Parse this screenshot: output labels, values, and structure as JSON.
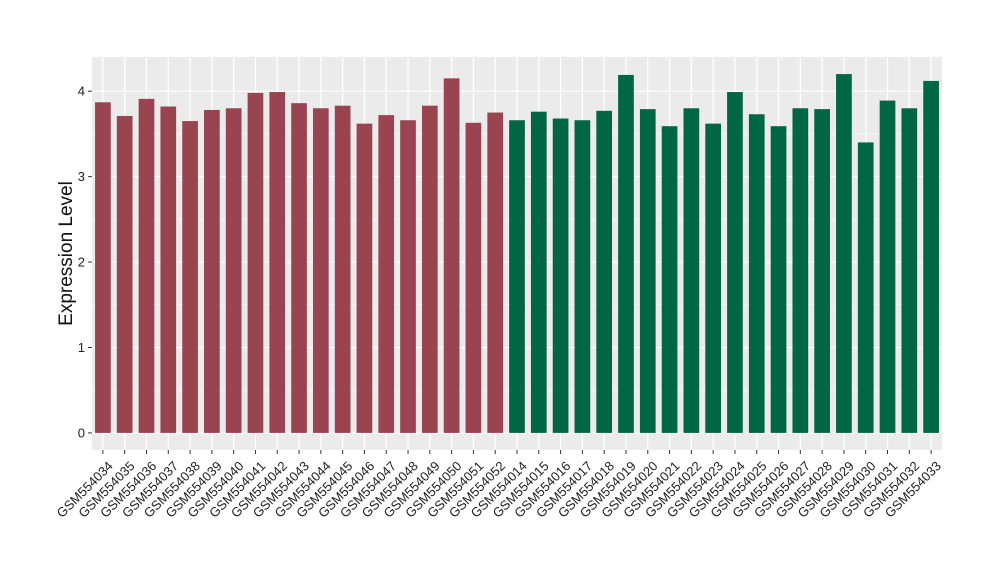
{
  "chart_data": {
    "type": "bar",
    "ylabel": "Expression Level",
    "xlabel": "",
    "title": "",
    "ylim": [
      -0.2,
      4.4
    ],
    "yticks": [
      0,
      1,
      2,
      3,
      4
    ],
    "grid": true,
    "legend": "none",
    "colors": {
      "group_a": "#9a4452",
      "group_b": "#006644",
      "panel_bg": "#ebebeb",
      "grid": "#ffffff"
    },
    "categories": [
      "GSM554034",
      "GSM554035",
      "GSM554036",
      "GSM554037",
      "GSM554038",
      "GSM554039",
      "GSM554040",
      "GSM554041",
      "GSM554042",
      "GSM554043",
      "GSM554044",
      "GSM554045",
      "GSM554046",
      "GSM554047",
      "GSM554048",
      "GSM554049",
      "GSM554050",
      "GSM554051",
      "GSM554052",
      "GSM554014",
      "GSM554015",
      "GSM554016",
      "GSM554017",
      "GSM554018",
      "GSM554019",
      "GSM554020",
      "GSM554021",
      "GSM554022",
      "GSM554023",
      "GSM554024",
      "GSM554025",
      "GSM554026",
      "GSM554027",
      "GSM554028",
      "GSM554029",
      "GSM554030",
      "GSM554031",
      "GSM554032",
      "GSM554033"
    ],
    "values": [
      3.87,
      3.71,
      3.91,
      3.82,
      3.65,
      3.78,
      3.8,
      3.98,
      3.99,
      3.86,
      3.8,
      3.83,
      3.62,
      3.72,
      3.66,
      3.83,
      4.15,
      3.63,
      3.75,
      3.66,
      3.76,
      3.68,
      3.66,
      3.77,
      4.19,
      3.79,
      3.59,
      3.8,
      3.62,
      3.99,
      3.73,
      3.59,
      3.8,
      3.79,
      4.2,
      3.4,
      3.89,
      3.8,
      4.12
    ],
    "groups": [
      "a",
      "a",
      "a",
      "a",
      "a",
      "a",
      "a",
      "a",
      "a",
      "a",
      "a",
      "a",
      "a",
      "a",
      "a",
      "a",
      "a",
      "a",
      "a",
      "b",
      "b",
      "b",
      "b",
      "b",
      "b",
      "b",
      "b",
      "b",
      "b",
      "b",
      "b",
      "b",
      "b",
      "b",
      "b",
      "b",
      "b",
      "b",
      "b"
    ]
  }
}
